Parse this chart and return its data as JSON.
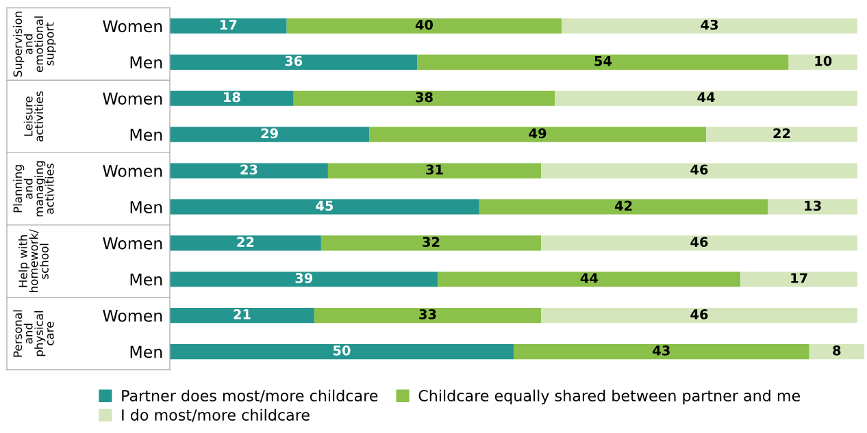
{
  "chart_data": {
    "type": "bar",
    "orientation": "horizontal",
    "stacked": true,
    "data_labels": true,
    "legend": "bottom",
    "grid": false,
    "tick_labels": "y",
    "categories": [
      "Women",
      "Men",
      "Women",
      "Men",
      "Women",
      "Men",
      "Women",
      "Men",
      "Women",
      "Men"
    ],
    "xlim": [
      0,
      101
    ],
    "series": [
      {
        "name": "Partner does most/more childcare",
        "color": "#259590",
        "values": [
          17,
          36,
          18,
          29,
          23,
          45,
          22,
          39,
          21,
          50
        ]
      },
      {
        "name": "Childcare equally shared between partner and me",
        "color": "#8bc04a",
        "values": [
          40,
          54,
          38,
          49,
          31,
          42,
          32,
          44,
          33,
          43
        ]
      },
      {
        "name": "I do most/more childcare",
        "color": "#d5e6bd",
        "values": [
          43,
          10,
          44,
          22,
          46,
          13,
          46,
          17,
          46,
          8
        ]
      }
    ],
    "annotations": [
      "Supervision\nand\nemotional\nsupport",
      "Leisure\nactivities",
      "Planning\nand\nmanaging\nactivities",
      "Help with\nhomework/\nschool",
      "Personal\nand\nphysical\ncare"
    ]
  }
}
